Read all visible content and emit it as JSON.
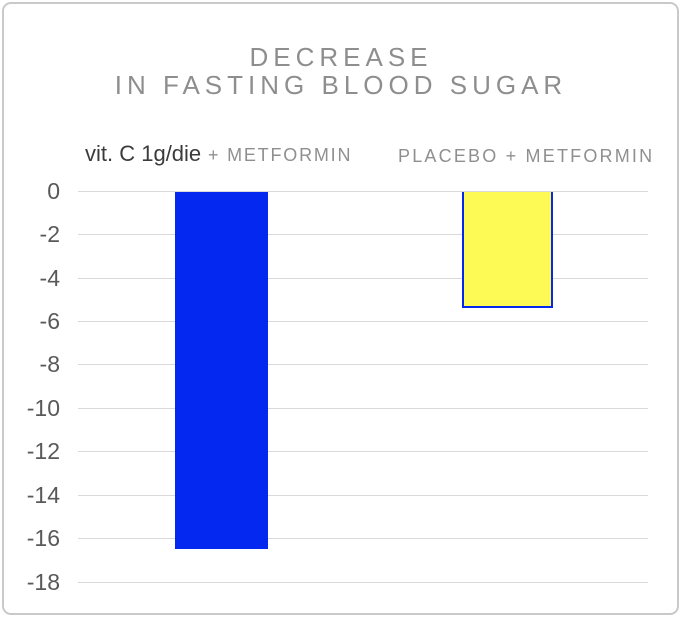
{
  "title": {
    "line1": "DECREASE",
    "line2": "IN FASTING BLOOD SUGAR"
  },
  "columns": {
    "left_main": "vit. C 1g/die",
    "left_suffix": " + METFORMIN",
    "right": "PLACEBO + METFORMIN"
  },
  "chart_data": {
    "type": "bar",
    "title": "DECREASE IN FASTING BLOOD SUGAR",
    "categories": [
      "vit. C 1g/die + METFORMIN",
      "PLACEBO + METFORMIN"
    ],
    "values": [
      -16.5,
      -5.4
    ],
    "ylim": [
      -18,
      0
    ],
    "yticks": [
      0,
      -2,
      -4,
      -6,
      -8,
      -10,
      -12,
      -14,
      -16,
      -18
    ],
    "grid": true,
    "legend": false,
    "bar_colors": [
      "#0428f0",
      "#fdfa56"
    ],
    "bar_border_colors": [
      null,
      "#0428f0"
    ],
    "xlabel": "",
    "ylabel": ""
  }
}
